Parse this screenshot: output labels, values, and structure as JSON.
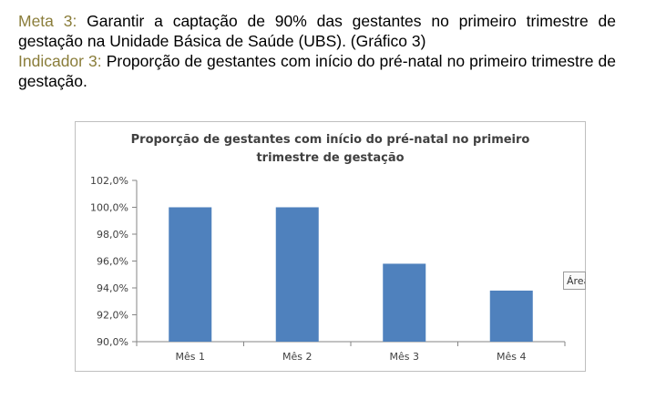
{
  "text": {
    "meta_label": "Meta 3:",
    "meta_text": "Garantir a captação de 90% das gestantes no primeiro trimestre de gestação na Unidade Básica de Saúde (UBS). (Gráfico 3)",
    "indicator_label": "Indicador 3:",
    "indicator_text": "Proporção de gestantes com início do pré-natal no primeiro trimestre de gestação."
  },
  "tooltip": {
    "label": "Área"
  },
  "chart_data": {
    "type": "bar",
    "title_lines": [
      "Proporção de gestantes com início do pré-natal no primeiro",
      "trimestre de gestação"
    ],
    "categories": [
      "Mês 1",
      "Mês 2",
      "Mês 3",
      "Mês 4"
    ],
    "values": [
      100.0,
      100.0,
      95.8,
      93.8
    ],
    "ylim": [
      90.0,
      102.0
    ],
    "yticks": [
      "90,0%",
      "92,0%",
      "94,0%",
      "96,0%",
      "98,0%",
      "100,0%",
      "102,0%"
    ],
    "ytick_values": [
      90,
      92,
      94,
      96,
      98,
      100,
      102
    ],
    "xlabel": "",
    "ylabel": "",
    "grid": false,
    "legend": "none",
    "bar_color": "#4f81bd",
    "axis_color": "#868686",
    "tick_label_color": "#404040"
  }
}
